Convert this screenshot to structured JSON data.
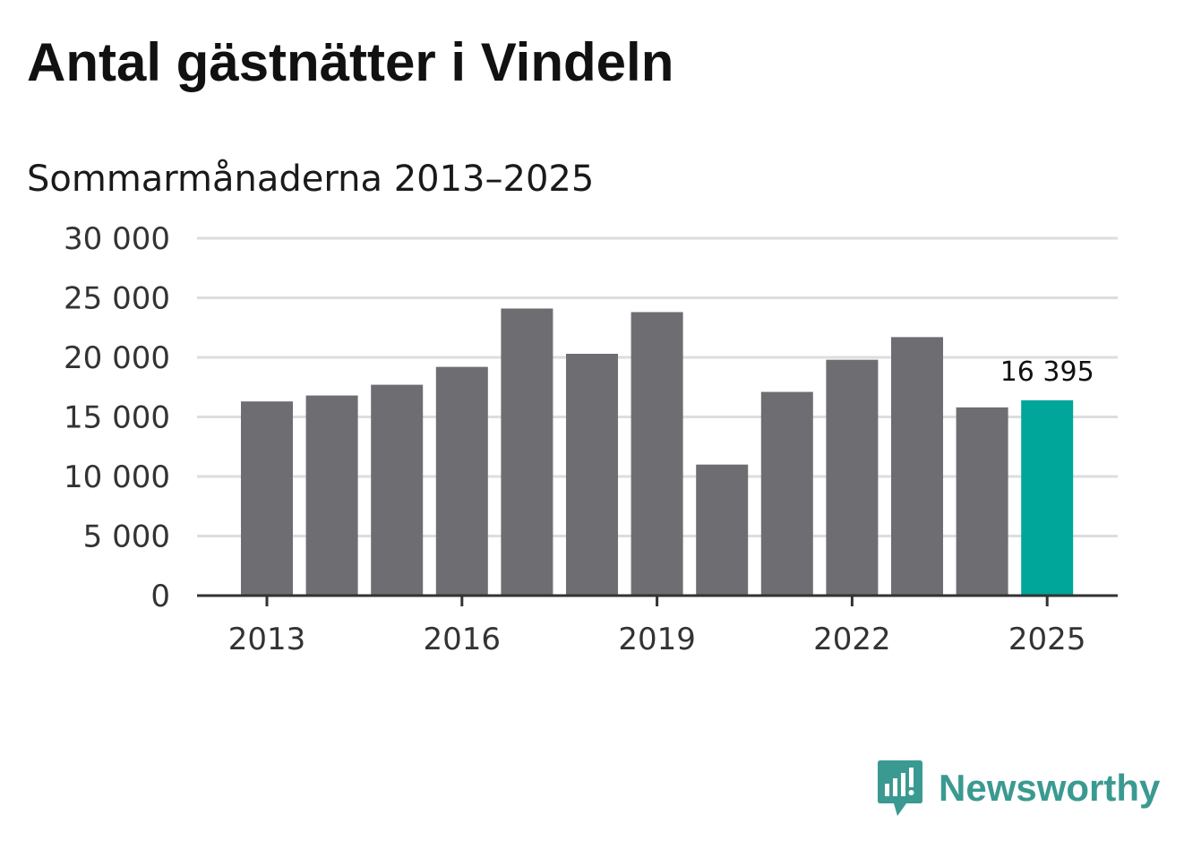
{
  "title": "Antal gästnätter i Vindeln",
  "subtitle": "Sommarmånaderna 2013–2025",
  "brand": {
    "name": "Newsworthy",
    "logo_icon": "bar-chart-speech-bubble-icon",
    "color": "#3a9a91"
  },
  "colors": {
    "bar": "#6e6d72",
    "highlight": "#00a69a",
    "grid": "#dddddd",
    "axis": "#333333"
  },
  "chart_data": {
    "type": "bar",
    "categories": [
      "2013",
      "2014",
      "2015",
      "2016",
      "2017",
      "2018",
      "2019",
      "2020",
      "2021",
      "2022",
      "2023",
      "2024",
      "2025"
    ],
    "values": [
      16300,
      16800,
      17700,
      19200,
      24100,
      20300,
      23800,
      11000,
      17100,
      19800,
      21700,
      15800,
      16395
    ],
    "highlight_index": 12,
    "highlight_label": "16 395",
    "ylim": [
      0,
      30000
    ],
    "yticks": [
      0,
      5000,
      10000,
      15000,
      20000,
      25000,
      30000
    ],
    "ytick_labels": [
      "0",
      "5 000",
      "10 000",
      "15 000",
      "20 000",
      "25 000",
      "30 000"
    ],
    "xtick_labels": [
      "2013",
      "2016",
      "2019",
      "2022",
      "2025"
    ],
    "grid": true,
    "legend": false
  }
}
